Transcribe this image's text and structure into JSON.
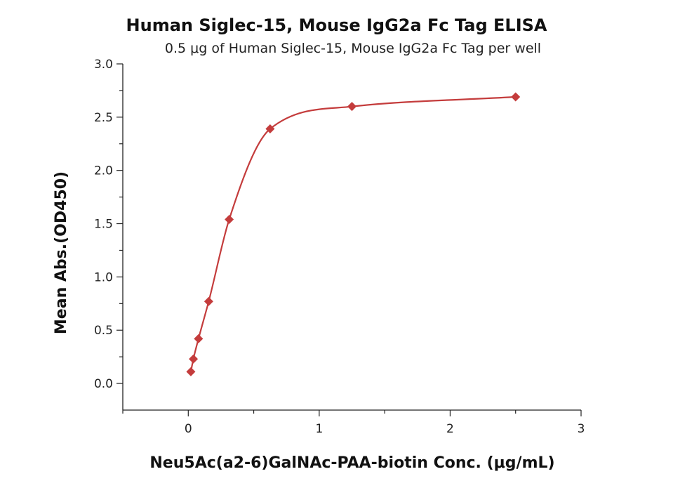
{
  "chart_data": {
    "type": "scatter",
    "title": "Human Siglec-15, Mouse IgG2a Fc Tag ELISA",
    "subtitle": "0.5 μg of Human Siglec-15, Mouse IgG2a Fc Tag per well",
    "xlabel": "Neu5Ac(a2-6)GalNAc-PAA-biotin Conc. (μg/mL)",
    "ylabel": "Mean Abs.(OD450)",
    "xlim": [
      -0.5,
      3
    ],
    "ylim": [
      -0.25,
      3
    ],
    "x_ticks": [
      "0",
      "1",
      "2",
      "3"
    ],
    "y_ticks": [
      "0.0",
      "0.5",
      "1.0",
      "1.5",
      "2.0",
      "2.5",
      "3.0"
    ],
    "series": [
      {
        "x": [
          0.0195,
          0.039,
          0.078,
          0.156,
          0.3125,
          0.625,
          1.25,
          2.5
        ],
        "values": [
          0.11,
          0.23,
          0.42,
          0.77,
          1.54,
          2.39,
          2.6,
          2.69
        ],
        "marker": "diamond",
        "fit": "curve"
      }
    ],
    "color": "#c43c3c",
    "grid": false,
    "legend": "none"
  }
}
